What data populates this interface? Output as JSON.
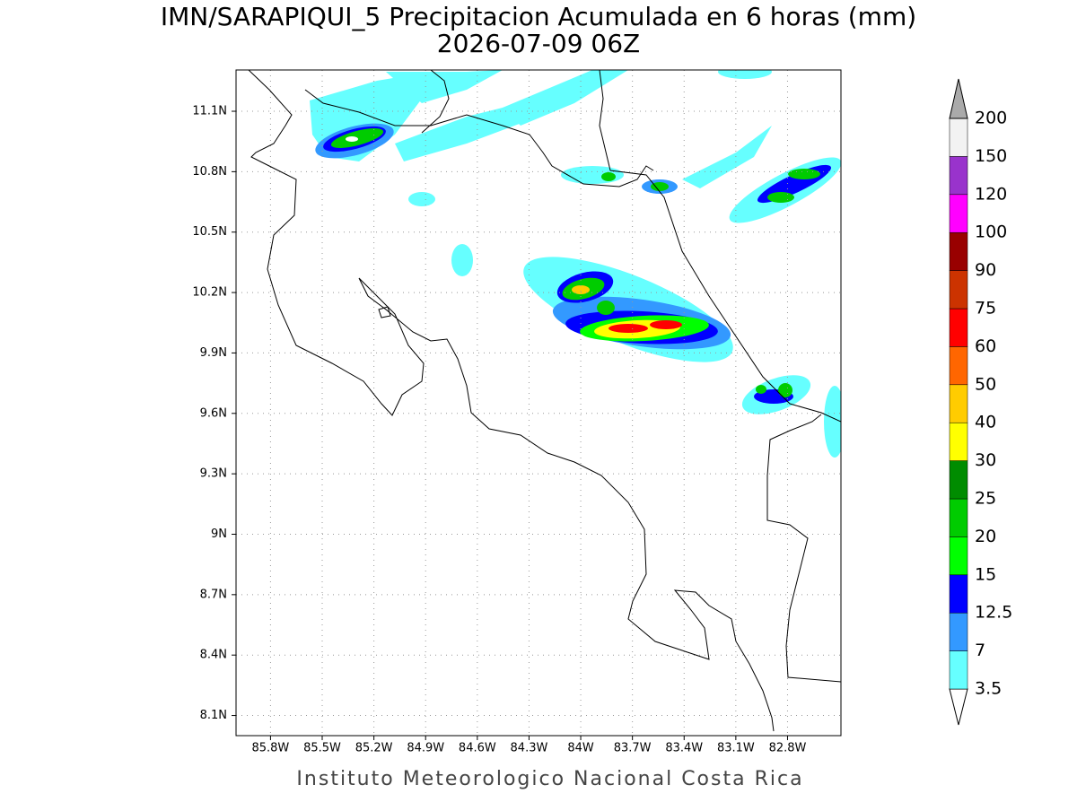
{
  "chart_data": {
    "type": "map",
    "title": "IMN/SARAPIQUI_5 Precipitacion Acumulada en 6 horas (mm)",
    "subtitle": "2026-07-09 06Z",
    "xlim": [
      -86.0,
      -82.49
    ],
    "ylim": [
      8.0,
      11.305
    ],
    "xticks": [
      {
        "value": -85.8,
        "label": "85.8W"
      },
      {
        "value": -85.5,
        "label": "85.5W"
      },
      {
        "value": -85.2,
        "label": "85.2W"
      },
      {
        "value": -84.9,
        "label": "84.9W"
      },
      {
        "value": -84.6,
        "label": "84.6W"
      },
      {
        "value": -84.3,
        "label": "84.3W"
      },
      {
        "value": -84.0,
        "label": "84W"
      },
      {
        "value": -83.7,
        "label": "83.7W"
      },
      {
        "value": -83.4,
        "label": "83.4W"
      },
      {
        "value": -83.1,
        "label": "83.1W"
      },
      {
        "value": -82.8,
        "label": "82.8W"
      }
    ],
    "yticks": [
      {
        "value": 8.1,
        "label": "8.1N"
      },
      {
        "value": 8.4,
        "label": "8.4N"
      },
      {
        "value": 8.7,
        "label": "8.7N"
      },
      {
        "value": 9.0,
        "label": "9N"
      },
      {
        "value": 9.3,
        "label": "9.3N"
      },
      {
        "value": 9.6,
        "label": "9.6N"
      },
      {
        "value": 9.9,
        "label": "9.9N"
      },
      {
        "value": 10.2,
        "label": "10.2N"
      },
      {
        "value": 10.5,
        "label": "10.5N"
      },
      {
        "value": 10.8,
        "label": "10.8N"
      },
      {
        "value": 11.1,
        "label": "11.1N"
      }
    ],
    "grid": true,
    "colorbar": {
      "levels": [
        3.5,
        7,
        12.5,
        15,
        20,
        25,
        30,
        40,
        50,
        60,
        75,
        90,
        100,
        120,
        150,
        200
      ],
      "colors": [
        "#ffffff",
        "#66ffff",
        "#3399ff",
        "#0000ff",
        "#00ff00",
        "#00cc00",
        "#008c00",
        "#ffff00",
        "#ffcc00",
        "#ff6600",
        "#ff0000",
        "#cc3300",
        "#990000",
        "#ff00ff",
        "#9933cc",
        "#f2f2f2",
        "#aaaaaa"
      ]
    },
    "footer": "Instituto Meteorologico Nacional Costa Rica"
  }
}
